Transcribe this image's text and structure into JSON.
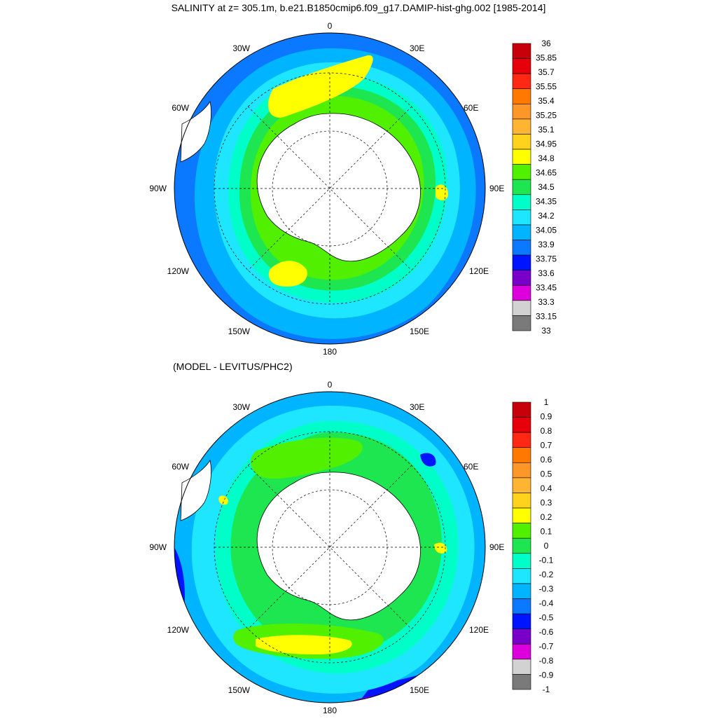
{
  "titles": {
    "main": "SALINITY at z= 305.1m, b.e21.B1850cmip6.f09_g17.DAMIP-hist-ghg.002 [1985-2014]",
    "difference": "(MODEL - LEVITUS/PHC2)"
  },
  "longitude_labels": [
    "0",
    "30E",
    "60E",
    "90E",
    "120E",
    "150E",
    "180",
    "150W",
    "120W",
    "90W",
    "60W",
    "30W"
  ],
  "colorbars": {
    "top": {
      "labels": [
        "36",
        "35.85",
        "35.7",
        "35.55",
        "35.4",
        "35.25",
        "35.1",
        "34.95",
        "34.8",
        "34.65",
        "34.5",
        "34.35",
        "34.2",
        "34.05",
        "33.9",
        "33.75",
        "33.6",
        "33.45",
        "33.3",
        "33.15",
        "33"
      ],
      "colors": [
        "#c8000a",
        "#e6000a",
        "#ff2814",
        "#ff7800",
        "#ff9628",
        "#ffb432",
        "#ffd21e",
        "#ffff00",
        "#50f000",
        "#1ee650",
        "#00ffc8",
        "#1ee6ff",
        "#00b4ff",
        "#0a78ff",
        "#0014ff",
        "#7800c8",
        "#dc00dc",
        "#d2d2d2",
        "#7a7a7a"
      ]
    },
    "bottom": {
      "labels": [
        "1",
        "0.9",
        "0.8",
        "0.7",
        "0.6",
        "0.5",
        "0.4",
        "0.3",
        "0.2",
        "0.1",
        "0",
        "-0.1",
        "-0.2",
        "-0.3",
        "-0.4",
        "-0.5",
        "-0.6",
        "-0.7",
        "-0.8",
        "-0.9",
        "-1"
      ],
      "colors": [
        "#c8000a",
        "#e6000a",
        "#ff2814",
        "#ff7800",
        "#ff9628",
        "#ffb432",
        "#ffd21e",
        "#ffff00",
        "#50f000",
        "#1ee650",
        "#00ffc8",
        "#1ee6ff",
        "#00b4ff",
        "#0a78ff",
        "#0014ff",
        "#7800c8",
        "#dc00dc",
        "#d2d2d2",
        "#7a7a7a"
      ]
    }
  },
  "palette": {
    "ocean_deep": "#0a78ff",
    "ocean_mid": "#00b4ff",
    "ocean_light": "#1ee6ff",
    "cyan": "#00ffc8",
    "green_light": "#1ee650",
    "green": "#50f000",
    "yellow": "#ffff00",
    "blue": "#0014ff",
    "purple": "#7800c8",
    "magenta": "#dc00dc",
    "land": "#ffffff"
  }
}
